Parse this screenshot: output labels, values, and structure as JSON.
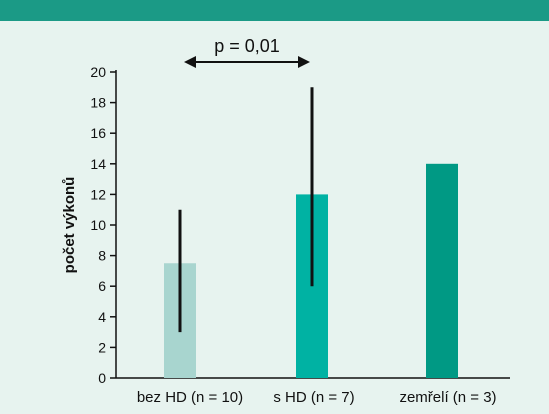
{
  "chart_data": {
    "type": "bar",
    "categories": [
      "bez HD (n = 10)",
      "s HD (n = 7)",
      "zemřelí (n = 3)"
    ],
    "values": [
      7.5,
      12,
      14
    ],
    "error_bars": [
      {
        "low": 3,
        "high": 11
      },
      {
        "low": 6,
        "high": 19
      },
      null
    ],
    "bar_colors": [
      "#a8d5cf",
      "#00b2a3",
      "#009984"
    ],
    "ylabel": "počet výkonů",
    "xlabel": "",
    "ylim": [
      0,
      20
    ],
    "yticks": [
      0,
      2,
      4,
      6,
      8,
      10,
      12,
      14,
      16,
      18,
      20
    ],
    "grid": false,
    "annotation": {
      "text": "p = 0,01",
      "between": [
        "bez HD (n = 10)",
        "s HD (n = 7)"
      ]
    }
  },
  "colors": {
    "background": "#e7f3ef",
    "header_band": "#1b9a86",
    "axis": "#111111"
  }
}
